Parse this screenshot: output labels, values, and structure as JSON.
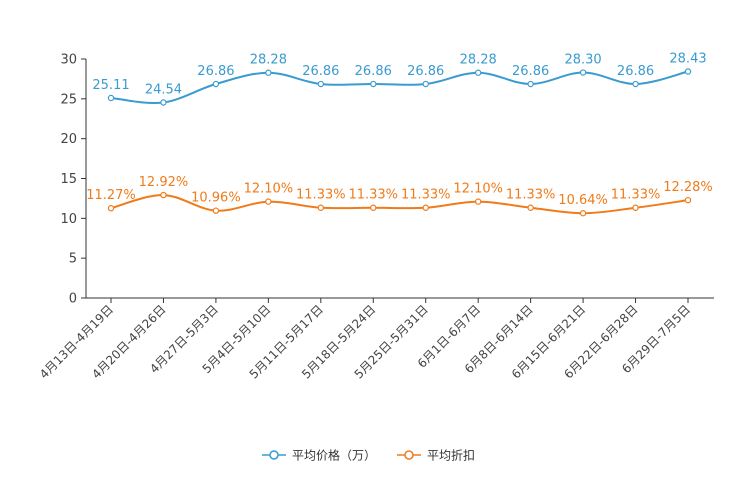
{
  "chart_data": {
    "type": "line",
    "title": "",
    "xlabel": "",
    "ylabel": "",
    "ylim": [
      0,
      30
    ],
    "yticks": [
      0,
      5,
      10,
      15,
      20,
      25,
      30
    ],
    "grid": false,
    "legend_position": "bottom-center",
    "categories": [
      "4月13日-4月19日",
      "4月20日-4月26日",
      "4月27日-5月3日",
      "5月4日-5月10日",
      "5月11日-5月17日",
      "5月18日-5月24日",
      "5月25日-5月31日",
      "6月1日-6月7日",
      "6月8日-6月14日",
      "6月15日-6月21日",
      "6月22日-6月28日",
      "6月29日-7月5日"
    ],
    "series": [
      {
        "name": "平均价格（万）",
        "color": "#3a9bd1",
        "values": [
          25.11,
          24.54,
          26.86,
          28.28,
          26.86,
          26.86,
          26.86,
          28.28,
          26.86,
          28.3,
          26.86,
          28.43
        ],
        "labels": [
          "25.11",
          "24.54",
          "26.86",
          "28.28",
          "26.86",
          "26.86",
          "26.86",
          "28.28",
          "26.86",
          "28.30",
          "26.86",
          "28.43"
        ]
      },
      {
        "name": "平均折扣",
        "color": "#f07b1a",
        "values": [
          11.27,
          12.92,
          10.96,
          12.1,
          11.33,
          11.33,
          11.33,
          12.1,
          11.33,
          10.64,
          11.33,
          12.28
        ],
        "labels": [
          "11.27%",
          "12.92%",
          "10.96%",
          "12.10%",
          "11.33%",
          "11.33%",
          "11.33%",
          "12.10%",
          "11.33%",
          "10.64%",
          "11.33%",
          "12.28%"
        ]
      }
    ]
  }
}
